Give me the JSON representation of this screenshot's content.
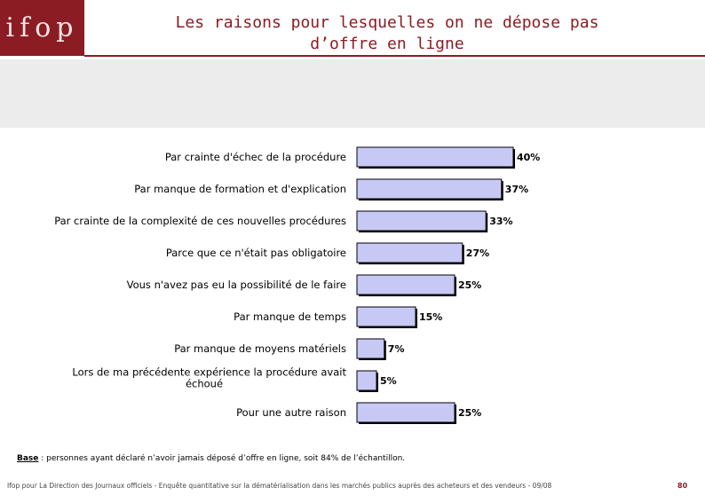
{
  "header": {
    "logo": "ifop",
    "title_line1": "Les raisons pour lesquelles on ne dépose pas",
    "title_line2": "d’offre en ligne"
  },
  "chart_data": {
    "type": "bar",
    "orientation": "horizontal",
    "categories": [
      "Par crainte d'échec de la procédure",
      "Par manque de formation et d'explication",
      "Par crainte de la complexité de ces nouvelles procédures",
      "Parce que ce n'était pas obligatoire",
      "Vous n'avez pas eu la possibilité de le faire",
      "Par manque de temps",
      "Par manque de moyens matériels",
      "Lors de ma précédente expérience la procédure avait échoué",
      "Pour une autre raison"
    ],
    "category_lines": [
      [
        "Par crainte d'échec de la procédure"
      ],
      [
        "Par manque de formation et d'explication"
      ],
      [
        "Par crainte de la complexité de ces nouvelles procédures"
      ],
      [
        "Parce que ce n'était pas obligatoire"
      ],
      [
        "Vous n'avez pas eu la possibilité de le faire"
      ],
      [
        "Par manque de temps"
      ],
      [
        "Par manque de moyens matériels"
      ],
      [
        "Lors de ma précédente expérience la procédure avait",
        "échoué"
      ],
      [
        "Pour une autre raison"
      ]
    ],
    "values": [
      40,
      37,
      33,
      27,
      25,
      15,
      7,
      5,
      25
    ],
    "value_labels": [
      "40%",
      "37%",
      "33%",
      "27%",
      "25%",
      "15%",
      "7%",
      "5%",
      "25%"
    ],
    "unit": "%",
    "xlim": [
      0,
      100
    ],
    "bar_color": "#c8c8f5",
    "bar_border": "#000000",
    "grid": false
  },
  "footnote": {
    "base_label": "Base",
    "text": " : personnes ayant déclaré n’avoir jamais déposé d’offre en ligne, soit 84% de l’échantillon."
  },
  "footer": {
    "text": "Ifop pour La Direction des Journaux officiels - Enquête quantitative sur la dématérialisation dans les marchés publics auprès des acheteurs et des vendeurs - 09/08",
    "page": "80"
  },
  "colors": {
    "brand": "#8b1c23",
    "band": "#ececec"
  }
}
